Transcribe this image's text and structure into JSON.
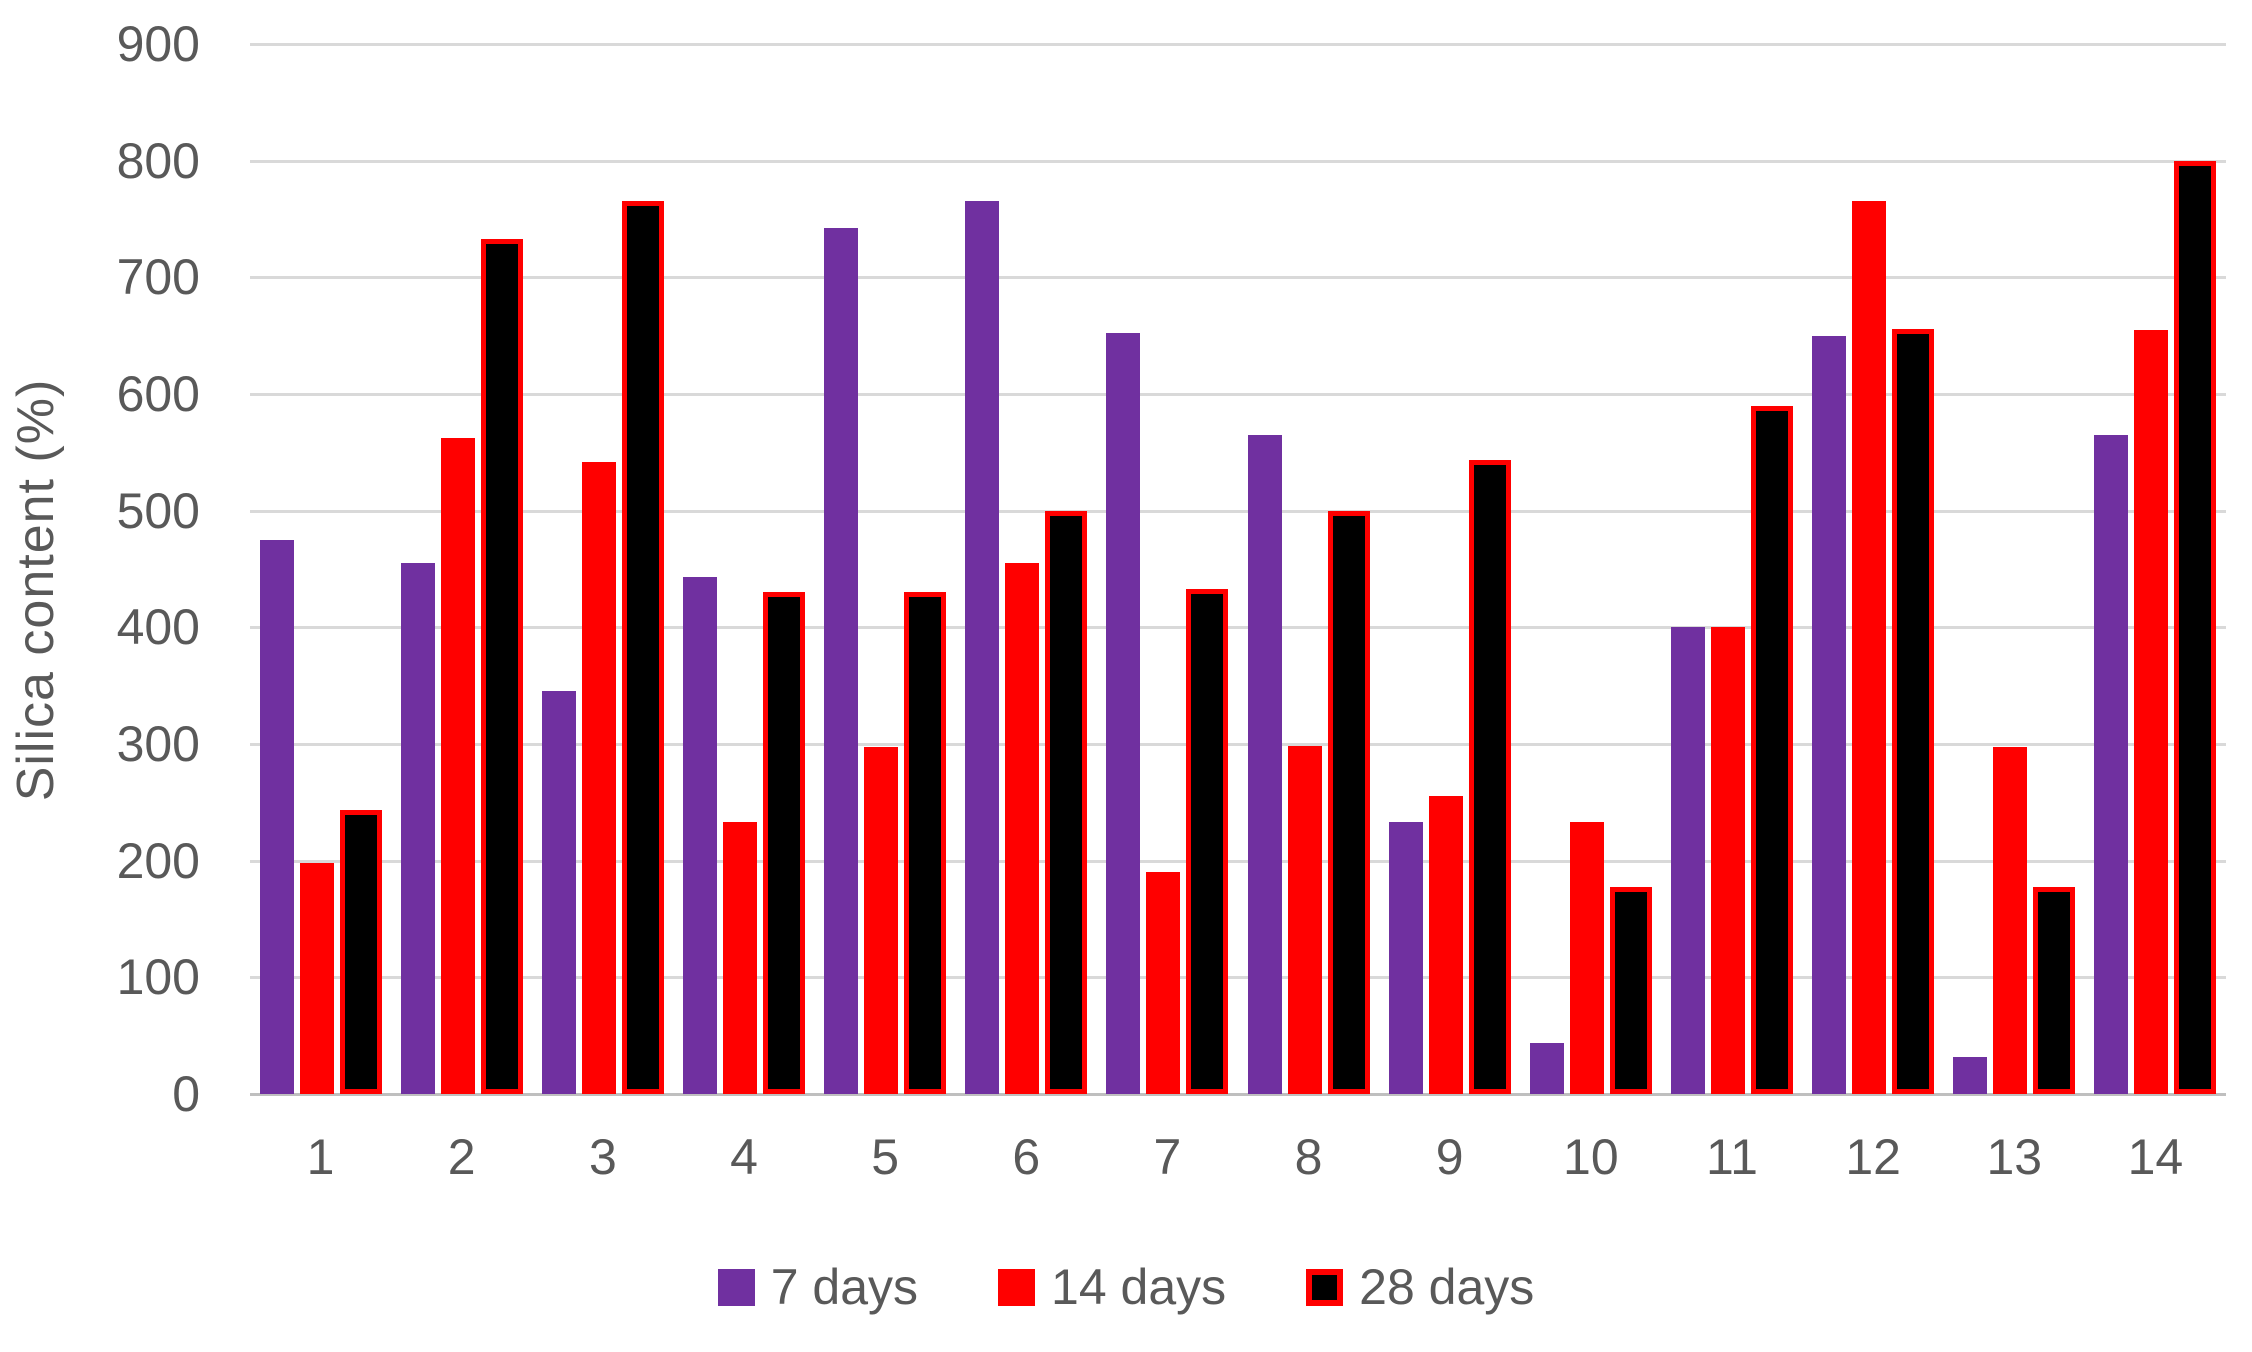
{
  "chart_data": {
    "type": "bar",
    "title": "",
    "xlabel": "",
    "ylabel": "Silica content  (%)",
    "categories": [
      "1",
      "2",
      "3",
      "4",
      "5",
      "6",
      "7",
      "8",
      "9",
      "10",
      "11",
      "12",
      "13",
      "14"
    ],
    "series": [
      {
        "name": "7 days",
        "color": "#7030A0",
        "outline": null,
        "values": [
          475,
          455,
          345,
          443,
          742,
          765,
          652,
          565,
          233,
          44,
          400,
          650,
          32,
          565
        ]
      },
      {
        "name": "14 days",
        "color": "#FF0000",
        "outline": null,
        "values": [
          198,
          562,
          542,
          233,
          297,
          455,
          190,
          298,
          255,
          233,
          400,
          765,
          297,
          655
        ]
      },
      {
        "name": "28 days",
        "color": "#000000",
        "outline": "#FF0000",
        "values": [
          243,
          733,
          765,
          430,
          430,
          500,
          433,
          500,
          543,
          177,
          590,
          656,
          177,
          800
        ]
      }
    ],
    "ylim": [
      0,
      900
    ],
    "ytick_step": 100,
    "yticks": [
      "0",
      "100",
      "200",
      "300",
      "400",
      "500",
      "600",
      "700",
      "800",
      "900"
    ],
    "grid": true,
    "legend_position": "bottom",
    "colors": {
      "gridline": "#d9d9d9",
      "axis_line": "#bfbfbf",
      "tick_text": "#595959",
      "background": "#ffffff"
    }
  }
}
